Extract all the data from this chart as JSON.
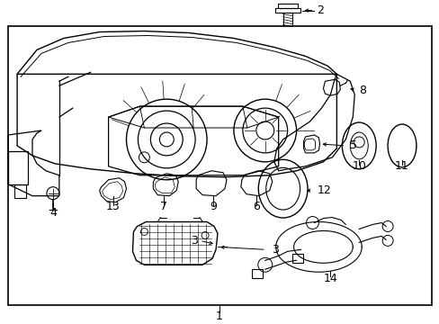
{
  "background_color": "#ffffff",
  "border_color": "#000000",
  "text_color": "#000000",
  "fig_width": 4.89,
  "fig_height": 3.6,
  "dpi": 100,
  "lw": 0.9,
  "font_size": 8
}
